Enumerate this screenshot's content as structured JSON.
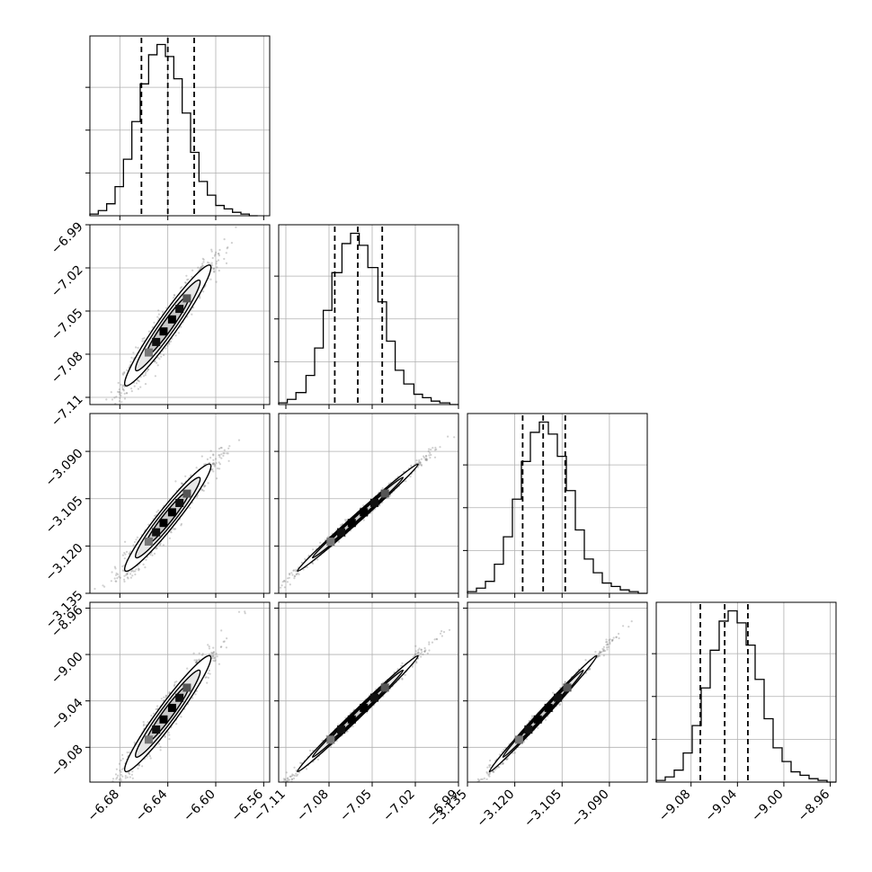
{
  "chart_data": {
    "type": "corner",
    "grid": true,
    "colors": {
      "line": "#000000",
      "grid": "#b0b0b0",
      "points": "#777777",
      "background": "#ffffff"
    },
    "parameters": [
      {
        "range": [
          -6.705,
          -6.555
        ],
        "ticks": [
          -6.68,
          -6.64,
          -6.6,
          -6.56
        ],
        "tick_labels": [
          "−6.68",
          "−6.64",
          "−6.60",
          "−6.56"
        ],
        "quantiles": [
          -6.662,
          -6.64,
          -6.618
        ],
        "hist_x": [
          -6.705,
          -6.698,
          -6.691,
          -6.684,
          -6.677,
          -6.67,
          -6.663,
          -6.656,
          -6.649,
          -6.642,
          -6.635,
          -6.628,
          -6.621,
          -6.614,
          -6.607,
          -6.6,
          -6.593,
          -6.586,
          -6.579,
          -6.572,
          -6.565
        ],
        "hist_counts": [
          1,
          3,
          7,
          17,
          33,
          55,
          77,
          94,
          100,
          93,
          80,
          60,
          37,
          20,
          12,
          6,
          4,
          2,
          1,
          0
        ]
      },
      {
        "range": [
          -7.115,
          -6.99
        ],
        "ticks": [
          -7.11,
          -7.08,
          -7.05,
          -7.02,
          -6.99
        ],
        "tick_labels": [
          "−7.11",
          "−7.08",
          "−7.05",
          "−7.02",
          "−6.99"
        ],
        "quantiles": [
          -7.076,
          -7.06,
          -7.043
        ],
        "hist_x": [
          -7.115,
          -7.109,
          -7.103,
          -7.096,
          -7.09,
          -7.084,
          -7.078,
          -7.071,
          -7.065,
          -7.059,
          -7.053,
          -7.046,
          -7.04,
          -7.034,
          -7.028,
          -7.021,
          -7.015,
          -7.009,
          -7.003,
          -6.996,
          -6.99
        ],
        "hist_counts": [
          1,
          3,
          7,
          17,
          33,
          55,
          77,
          94,
          100,
          93,
          80,
          60,
          37,
          20,
          12,
          6,
          4,
          2,
          1,
          0
        ]
      },
      {
        "range": [
          -3.135,
          -3.078
        ],
        "ticks": [
          -3.135,
          -3.12,
          -3.105,
          -3.09
        ],
        "tick_labels": [
          "−3.135",
          "−3.120",
          "−3.105",
          "−3.090"
        ],
        "quantiles": [
          -3.1175,
          -3.111,
          -3.104
        ],
        "hist_x": [
          -3.135,
          -3.13215,
          -3.1293,
          -3.12645,
          -3.1236,
          -3.12075,
          -3.1179,
          -3.11505,
          -3.1122,
          -3.10935,
          -3.1065,
          -3.10365,
          -3.1008,
          -3.09795,
          -3.0951,
          -3.09225,
          -3.0894,
          -3.08655,
          -3.0837,
          -3.08085,
          -3.078
        ],
        "hist_counts": [
          1,
          3,
          7,
          17,
          33,
          55,
          77,
          94,
          100,
          93,
          80,
          60,
          37,
          20,
          12,
          6,
          4,
          2,
          1,
          0
        ]
      },
      {
        "range": [
          -9.11,
          -8.955
        ],
        "ticks": [
          -9.08,
          -9.04,
          -9.0,
          -8.96
        ],
        "tick_labels": [
          "−9.08",
          "−9.04",
          "−9.00",
          "−8.96"
        ],
        "quantiles": [
          -9.072,
          -9.051,
          -9.031
        ],
        "hist_x": [
          -9.11,
          -9.10225,
          -9.0945,
          -9.08675,
          -9.079,
          -9.07125,
          -9.0635,
          -9.05575,
          -9.048,
          -9.04025,
          -9.0325,
          -9.02475,
          -9.017,
          -9.00925,
          -9.0015,
          -8.99375,
          -8.986,
          -8.97825,
          -8.9705,
          -8.96275,
          -8.955
        ],
        "hist_counts": [
          1,
          3,
          7,
          17,
          33,
          55,
          77,
          94,
          100,
          93,
          80,
          60,
          37,
          20,
          12,
          6,
          4,
          2,
          1,
          0
        ]
      }
    ],
    "hist_y_ticks": [
      25,
      50,
      75
    ],
    "hist_y_max": 105,
    "panels": [
      {
        "x": 0,
        "y": 1,
        "mean": [
          -6.64,
          -7.06
        ],
        "sd": [
          0.018,
          0.021
        ],
        "corr": 0.96
      },
      {
        "x": 0,
        "y": 2,
        "mean": [
          -6.64,
          -3.111
        ],
        "sd": [
          0.018,
          0.0085
        ],
        "corr": 0.96
      },
      {
        "x": 1,
        "y": 2,
        "mean": [
          -7.06,
          -3.111
        ],
        "sd": [
          0.021,
          0.0085
        ],
        "corr": 0.995
      },
      {
        "x": 0,
        "y": 3,
        "mean": [
          -6.64,
          -9.051
        ],
        "sd": [
          0.018,
          0.025
        ],
        "corr": 0.96
      },
      {
        "x": 1,
        "y": 3,
        "mean": [
          -7.06,
          -9.051
        ],
        "sd": [
          0.021,
          0.025
        ],
        "corr": 0.995
      },
      {
        "x": 2,
        "y": 3,
        "mean": [
          -3.111,
          -9.051
        ],
        "sd": [
          0.0085,
          0.025
        ],
        "corr": 0.995
      }
    ],
    "contour_levels_sigma": [
      1.0,
      1.5,
      2.0
    ]
  }
}
